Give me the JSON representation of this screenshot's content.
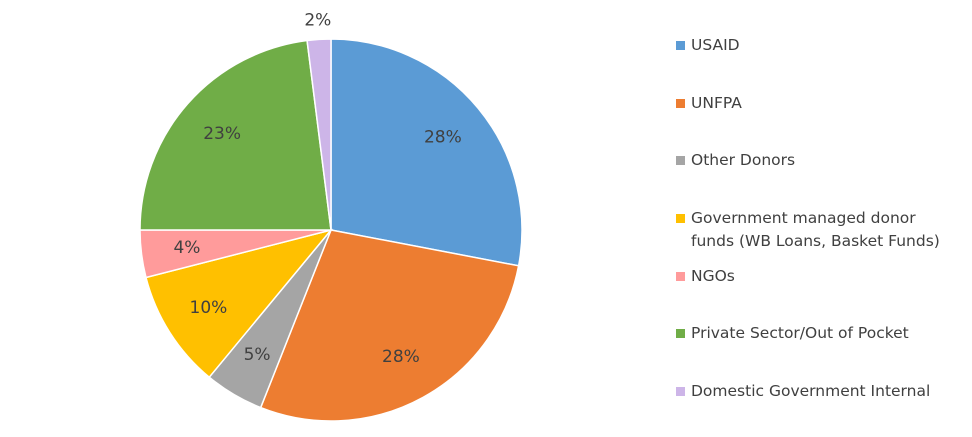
{
  "chart_data": {
    "type": "pie",
    "categories": [
      "USAID",
      "UNFPA",
      "Other Donors",
      "Government managed donor funds (WB Loans, Basket Funds)",
      "NGOs",
      "Private Sector/Out of Pocket",
      "Domestic Government Internal"
    ],
    "values": [
      28,
      28,
      5,
      10,
      4,
      23,
      2
    ],
    "value_labels": [
      "28%",
      "28%",
      "5%",
      "10%",
      "4%",
      "23%",
      "2%"
    ],
    "colors": [
      "#5b9bd5",
      "#ed7d31",
      "#a5a5a5",
      "#ffc000",
      "#ff9b9b",
      "#70ad47",
      "#cdb5e8"
    ],
    "legend": "right"
  }
}
